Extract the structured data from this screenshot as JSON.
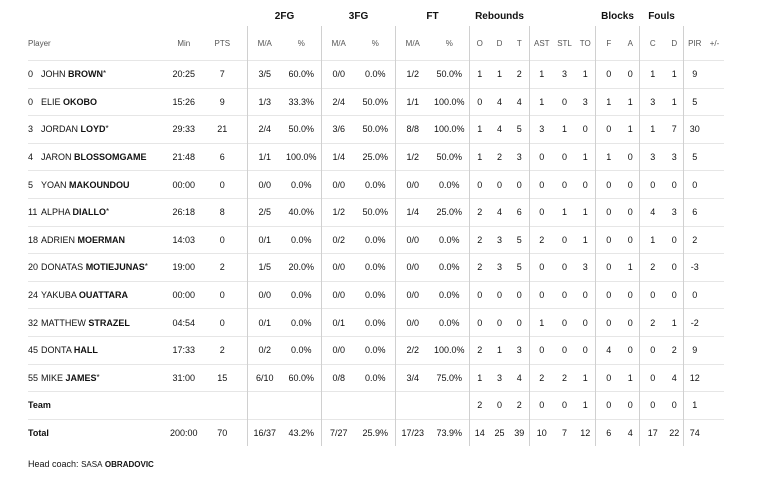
{
  "groups": {
    "fg2": "2FG",
    "fg3": "3FG",
    "ft": "FT",
    "rebounds": "Rebounds",
    "blocks": "Blocks",
    "fouls": "Fouls"
  },
  "columns": {
    "player": "Player",
    "min": "Min",
    "pts": "PTS",
    "fg2_ma": "M/A",
    "fg2_pct": "%",
    "fg3_ma": "M/A",
    "fg3_pct": "%",
    "ft_ma": "M/A",
    "ft_pct": "%",
    "reb_o": "O",
    "reb_d": "D",
    "reb_t": "T",
    "ast": "AST",
    "stl": "STL",
    "to": "TO",
    "blk_f": "F",
    "blk_a": "A",
    "foul_c": "C",
    "foul_d": "D",
    "pir": "PIR",
    "pm": "+/-"
  },
  "players": [
    {
      "num": "0",
      "first": "JOHN",
      "last": "BROWN",
      "star": "*",
      "min": "20:25",
      "pts": "7",
      "fg2_ma": "3/5",
      "fg2_pct": "60.0%",
      "fg3_ma": "0/0",
      "fg3_pct": "0.0%",
      "ft_ma": "1/2",
      "ft_pct": "50.0%",
      "o": "1",
      "d": "1",
      "t": "2",
      "ast": "1",
      "stl": "3",
      "to": "1",
      "bf": "0",
      "ba": "0",
      "fc": "1",
      "fd": "1",
      "pir": "9",
      "pm": ""
    },
    {
      "num": "0",
      "first": "ELIE",
      "last": "OKOBO",
      "star": "",
      "min": "15:26",
      "pts": "9",
      "fg2_ma": "1/3",
      "fg2_pct": "33.3%",
      "fg3_ma": "2/4",
      "fg3_pct": "50.0%",
      "ft_ma": "1/1",
      "ft_pct": "100.0%",
      "o": "0",
      "d": "4",
      "t": "4",
      "ast": "1",
      "stl": "0",
      "to": "3",
      "bf": "1",
      "ba": "1",
      "fc": "3",
      "fd": "1",
      "pir": "5",
      "pm": ""
    },
    {
      "num": "3",
      "first": "JORDAN",
      "last": "LOYD",
      "star": "*",
      "min": "29:33",
      "pts": "21",
      "fg2_ma": "2/4",
      "fg2_pct": "50.0%",
      "fg3_ma": "3/6",
      "fg3_pct": "50.0%",
      "ft_ma": "8/8",
      "ft_pct": "100.0%",
      "o": "1",
      "d": "4",
      "t": "5",
      "ast": "3",
      "stl": "1",
      "to": "0",
      "bf": "0",
      "ba": "1",
      "fc": "1",
      "fd": "7",
      "pir": "30",
      "pm": ""
    },
    {
      "num": "4",
      "first": "JARON",
      "last": "BLOSSOMGAME",
      "star": "",
      "min": "21:48",
      "pts": "6",
      "fg2_ma": "1/1",
      "fg2_pct": "100.0%",
      "fg3_ma": "1/4",
      "fg3_pct": "25.0%",
      "ft_ma": "1/2",
      "ft_pct": "50.0%",
      "o": "1",
      "d": "2",
      "t": "3",
      "ast": "0",
      "stl": "0",
      "to": "1",
      "bf": "1",
      "ba": "0",
      "fc": "3",
      "fd": "3",
      "pir": "5",
      "pm": ""
    },
    {
      "num": "5",
      "first": "YOAN",
      "last": "MAKOUNDOU",
      "star": "",
      "min": "00:00",
      "pts": "0",
      "fg2_ma": "0/0",
      "fg2_pct": "0.0%",
      "fg3_ma": "0/0",
      "fg3_pct": "0.0%",
      "ft_ma": "0/0",
      "ft_pct": "0.0%",
      "o": "0",
      "d": "0",
      "t": "0",
      "ast": "0",
      "stl": "0",
      "to": "0",
      "bf": "0",
      "ba": "0",
      "fc": "0",
      "fd": "0",
      "pir": "0",
      "pm": ""
    },
    {
      "num": "11",
      "first": "ALPHA",
      "last": "DIALLO",
      "star": "*",
      "min": "26:18",
      "pts": "8",
      "fg2_ma": "2/5",
      "fg2_pct": "40.0%",
      "fg3_ma": "1/2",
      "fg3_pct": "50.0%",
      "ft_ma": "1/4",
      "ft_pct": "25.0%",
      "o": "2",
      "d": "4",
      "t": "6",
      "ast": "0",
      "stl": "1",
      "to": "1",
      "bf": "0",
      "ba": "0",
      "fc": "4",
      "fd": "3",
      "pir": "6",
      "pm": ""
    },
    {
      "num": "18",
      "first": "ADRIEN",
      "last": "MOERMAN",
      "star": "",
      "min": "14:03",
      "pts": "0",
      "fg2_ma": "0/1",
      "fg2_pct": "0.0%",
      "fg3_ma": "0/2",
      "fg3_pct": "0.0%",
      "ft_ma": "0/0",
      "ft_pct": "0.0%",
      "o": "2",
      "d": "3",
      "t": "5",
      "ast": "2",
      "stl": "0",
      "to": "1",
      "bf": "0",
      "ba": "0",
      "fc": "1",
      "fd": "0",
      "pir": "2",
      "pm": ""
    },
    {
      "num": "20",
      "first": "DONATAS",
      "last": "MOTIEJUNAS",
      "star": "*",
      "min": "19:00",
      "pts": "2",
      "fg2_ma": "1/5",
      "fg2_pct": "20.0%",
      "fg3_ma": "0/0",
      "fg3_pct": "0.0%",
      "ft_ma": "0/0",
      "ft_pct": "0.0%",
      "o": "2",
      "d": "3",
      "t": "5",
      "ast": "0",
      "stl": "0",
      "to": "3",
      "bf": "0",
      "ba": "1",
      "fc": "2",
      "fd": "0",
      "pir": "-3",
      "pm": ""
    },
    {
      "num": "24",
      "first": "YAKUBA",
      "last": "OUATTARA",
      "star": "",
      "min": "00:00",
      "pts": "0",
      "fg2_ma": "0/0",
      "fg2_pct": "0.0%",
      "fg3_ma": "0/0",
      "fg3_pct": "0.0%",
      "ft_ma": "0/0",
      "ft_pct": "0.0%",
      "o": "0",
      "d": "0",
      "t": "0",
      "ast": "0",
      "stl": "0",
      "to": "0",
      "bf": "0",
      "ba": "0",
      "fc": "0",
      "fd": "0",
      "pir": "0",
      "pm": ""
    },
    {
      "num": "32",
      "first": "MATTHEW",
      "last": "STRAZEL",
      "star": "",
      "min": "04:54",
      "pts": "0",
      "fg2_ma": "0/1",
      "fg2_pct": "0.0%",
      "fg3_ma": "0/1",
      "fg3_pct": "0.0%",
      "ft_ma": "0/0",
      "ft_pct": "0.0%",
      "o": "0",
      "d": "0",
      "t": "0",
      "ast": "1",
      "stl": "0",
      "to": "0",
      "bf": "0",
      "ba": "0",
      "fc": "2",
      "fd": "1",
      "pir": "-2",
      "pm": ""
    },
    {
      "num": "45",
      "first": "DONTA",
      "last": "HALL",
      "star": "",
      "min": "17:33",
      "pts": "2",
      "fg2_ma": "0/2",
      "fg2_pct": "0.0%",
      "fg3_ma": "0/0",
      "fg3_pct": "0.0%",
      "ft_ma": "2/2",
      "ft_pct": "100.0%",
      "o": "2",
      "d": "1",
      "t": "3",
      "ast": "0",
      "stl": "0",
      "to": "0",
      "bf": "4",
      "ba": "0",
      "fc": "0",
      "fd": "2",
      "pir": "9",
      "pm": ""
    },
    {
      "num": "55",
      "first": "MIKE",
      "last": "JAMES",
      "star": "*",
      "min": "31:00",
      "pts": "15",
      "fg2_ma": "6/10",
      "fg2_pct": "60.0%",
      "fg3_ma": "0/8",
      "fg3_pct": "0.0%",
      "ft_ma": "3/4",
      "ft_pct": "75.0%",
      "o": "1",
      "d": "3",
      "t": "4",
      "ast": "2",
      "stl": "2",
      "to": "1",
      "bf": "0",
      "ba": "1",
      "fc": "0",
      "fd": "4",
      "pir": "12",
      "pm": ""
    }
  ],
  "team": {
    "label": "Team",
    "min": "",
    "pts": "",
    "fg2_ma": "",
    "fg2_pct": "",
    "fg3_ma": "",
    "fg3_pct": "",
    "ft_ma": "",
    "ft_pct": "",
    "o": "2",
    "d": "0",
    "t": "2",
    "ast": "0",
    "stl": "0",
    "to": "1",
    "bf": "0",
    "ba": "0",
    "fc": "0",
    "fd": "0",
    "pir": "1",
    "pm": ""
  },
  "total": {
    "label": "Total",
    "min": "200:00",
    "pts": "70",
    "fg2_ma": "16/37",
    "fg2_pct": "43.2%",
    "fg3_ma": "7/27",
    "fg3_pct": "25.9%",
    "ft_ma": "17/23",
    "ft_pct": "73.9%",
    "o": "14",
    "d": "25",
    "t": "39",
    "ast": "10",
    "stl": "7",
    "to": "12",
    "bf": "6",
    "ba": "4",
    "fc": "17",
    "fd": "22",
    "pir": "74",
    "pm": ""
  },
  "coach": {
    "label": "Head coach:",
    "first": "SASA",
    "last": "OBRADOVIC"
  }
}
